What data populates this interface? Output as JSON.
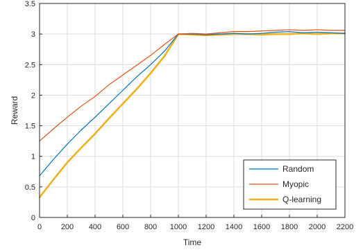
{
  "chart_data": {
    "type": "line",
    "title": "",
    "xlabel": "Time",
    "ylabel": "Reward",
    "xlim": [
      0,
      2200
    ],
    "ylim": [
      0,
      3.5
    ],
    "grid": true,
    "legend_position": "bottom-right",
    "x_ticks": [
      "0",
      "200",
      "400",
      "600",
      "800",
      "1000",
      "1200",
      "1400",
      "1600",
      "1800",
      "2000",
      "2200"
    ],
    "y_ticks": [
      "0",
      "0.5",
      "1",
      "1.5",
      "2",
      "2.5",
      "3",
      "3.5"
    ],
    "series": [
      {
        "name": "Random",
        "color": "#0072BD",
        "line_width": "thin",
        "x": [
          0,
          100,
          200,
          300,
          400,
          500,
          600,
          700,
          800,
          900,
          1000,
          1100,
          1200,
          1300,
          1400,
          1500,
          1600,
          1700,
          1800,
          1900,
          2000,
          2100,
          2200
        ],
        "y": [
          0.68,
          0.95,
          1.2,
          1.43,
          1.64,
          1.86,
          2.08,
          2.3,
          2.5,
          2.72,
          3.0,
          3.0,
          2.99,
          3.0,
          3.01,
          3.0,
          3.01,
          3.03,
          3.04,
          3.02,
          3.03,
          3.02,
          3.01
        ]
      },
      {
        "name": "Myopic",
        "color": "#D95319",
        "line_width": "thin",
        "x": [
          0,
          100,
          200,
          300,
          400,
          500,
          600,
          700,
          800,
          900,
          1000,
          1100,
          1200,
          1300,
          1400,
          1500,
          1600,
          1700,
          1800,
          1900,
          2000,
          2100,
          2200
        ],
        "y": [
          1.25,
          1.45,
          1.64,
          1.82,
          1.98,
          2.17,
          2.33,
          2.49,
          2.65,
          2.83,
          3.0,
          3.01,
          3.0,
          3.02,
          3.04,
          3.04,
          3.05,
          3.06,
          3.07,
          3.06,
          3.07,
          3.06,
          3.06
        ]
      },
      {
        "name": "Q-learning",
        "color": "#EDB120",
        "line_width": "thick",
        "x": [
          0,
          100,
          200,
          300,
          400,
          500,
          600,
          700,
          800,
          900,
          1000,
          1100,
          1200,
          1300,
          1400,
          1500,
          1600,
          1700,
          1800,
          1900,
          2000,
          2100,
          2200
        ],
        "y": [
          0.33,
          0.62,
          0.9,
          1.14,
          1.37,
          1.62,
          1.86,
          2.1,
          2.36,
          2.64,
          3.0,
          2.99,
          2.98,
          2.99,
          3.0,
          3.0,
          2.99,
          3.0,
          3.0,
          3.01,
          3.0,
          3.01,
          3.01
        ]
      }
    ]
  }
}
